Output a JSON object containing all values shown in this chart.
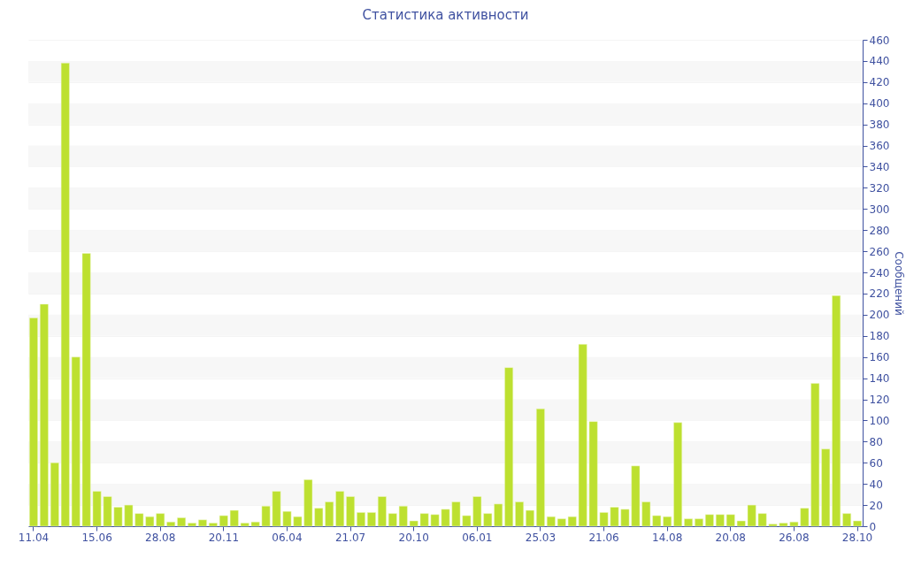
{
  "chart_data": {
    "type": "bar",
    "title": "Статистика активности",
    "ylabel": "Сообщений",
    "categories": [
      "11.04",
      null,
      null,
      null,
      null,
      null,
      "15.06",
      null,
      null,
      null,
      null,
      null,
      "28.08",
      null,
      null,
      null,
      null,
      null,
      "20.11",
      null,
      null,
      null,
      null,
      null,
      "06.04",
      null,
      null,
      null,
      null,
      null,
      "21.07",
      null,
      null,
      null,
      null,
      null,
      "20.10",
      null,
      null,
      null,
      null,
      null,
      "06.01",
      null,
      null,
      null,
      null,
      null,
      "25.03",
      null,
      null,
      null,
      null,
      null,
      "21.06",
      null,
      null,
      null,
      null,
      null,
      "14.08",
      null,
      null,
      null,
      null,
      null,
      "20.08",
      null,
      null,
      null,
      null,
      null,
      "26.08",
      null,
      null,
      null,
      null,
      null,
      "28.10"
    ],
    "values": [
      197,
      210,
      60,
      438,
      160,
      258,
      33,
      28,
      18,
      20,
      12,
      9,
      12,
      4,
      8,
      3,
      6,
      3,
      10,
      15,
      3,
      4,
      19,
      33,
      14,
      9,
      44,
      17,
      23,
      33,
      28,
      13,
      13,
      28,
      12,
      19,
      5,
      12,
      11,
      16,
      23,
      10,
      28,
      12,
      21,
      150,
      23,
      15,
      111,
      9,
      7,
      9,
      172,
      99,
      13,
      18,
      16,
      57,
      23,
      10,
      9,
      98,
      7,
      7,
      11,
      11,
      11,
      5,
      20,
      12,
      2,
      3,
      4,
      17,
      135,
      73,
      218,
      12,
      5
    ],
    "color": "#bde030",
    "ylim": [
      0,
      460
    ],
    "yticks": [
      0,
      20,
      40,
      60,
      80,
      100,
      120,
      140,
      160,
      180,
      200,
      220,
      240,
      260,
      280,
      300,
      320,
      340,
      360,
      380,
      400,
      420,
      440,
      460
    ],
    "grid": "y"
  }
}
